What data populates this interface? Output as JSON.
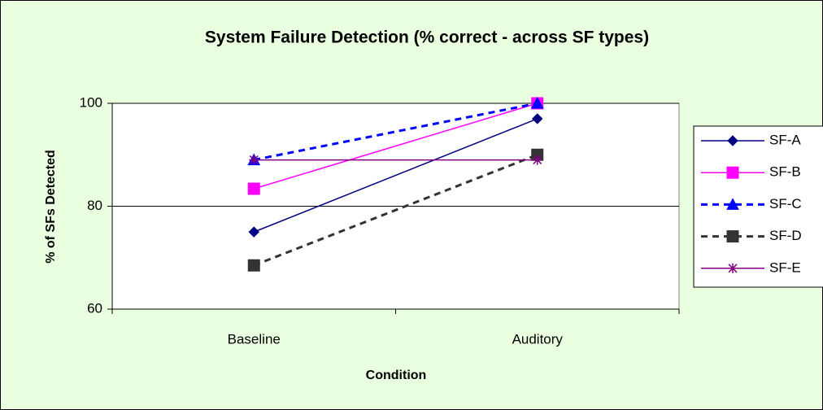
{
  "chart_data": {
    "type": "line",
    "title": "System Failure Detection (% correct - across SF types)",
    "x_label": "Condition",
    "y_label": "% of SFs Detected",
    "categories": [
      "Baseline",
      "Auditory"
    ],
    "series": [
      {
        "name": "SF-A",
        "color": "#000080",
        "marker": "diamond",
        "dash": false,
        "values": [
          75,
          97
        ]
      },
      {
        "name": "SF-B",
        "color": "#ff00ff",
        "marker": "square",
        "dash": false,
        "values": [
          83.4,
          100
        ]
      },
      {
        "name": "SF-C",
        "color": "#0000ff",
        "marker": "triangle",
        "dash": true,
        "values": [
          89,
          100
        ]
      },
      {
        "name": "SF-D",
        "color": "#333333",
        "marker": "square",
        "dash": true,
        "values": [
          68.5,
          90
        ]
      },
      {
        "name": "SF-E",
        "color": "#800080",
        "marker": "star",
        "dash": false,
        "values": [
          89,
          89
        ]
      }
    ],
    "ylim": [
      60,
      100
    ],
    "yticks": [
      60,
      80,
      100
    ],
    "grid": true,
    "legend": "right"
  }
}
